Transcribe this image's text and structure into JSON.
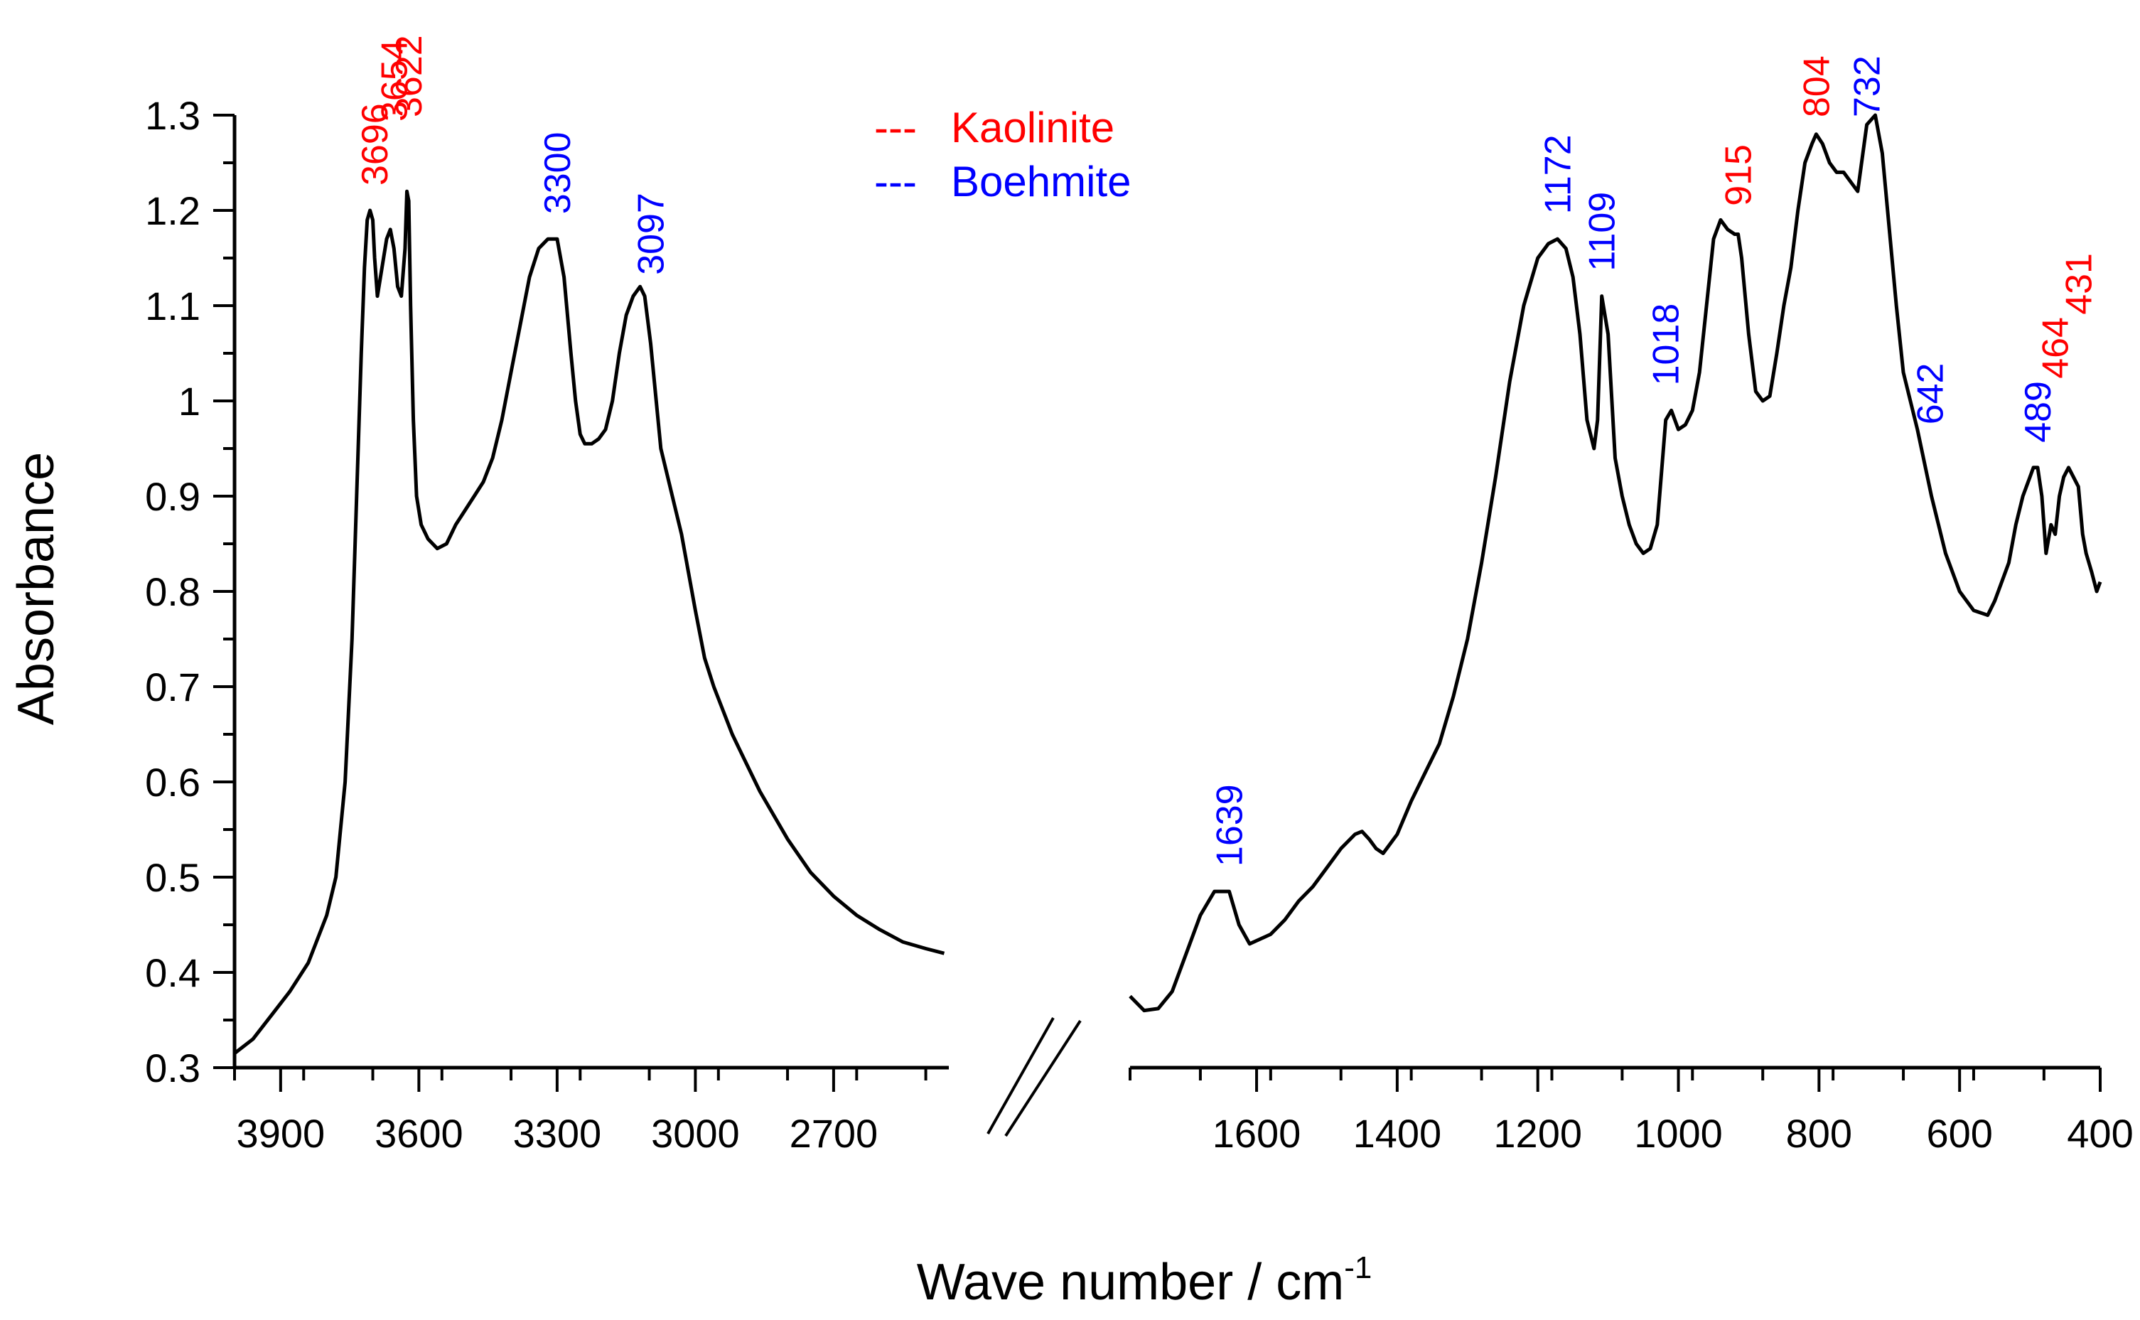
{
  "chart_data": {
    "type": "line",
    "ylabel": "Absorbance",
    "xlabel": "Wave number / cm",
    "xlabel_superscript": "-1",
    "ylim": [
      0.3,
      1.3
    ],
    "yticks": [
      "0.3",
      "0.4",
      "0.5",
      "0.6",
      "0.7",
      "0.8",
      "0.9",
      "1",
      "1.1",
      "1.2",
      "1.3"
    ],
    "colors": {
      "kaolinite": "#ff0000",
      "boehmite": "#0000ff",
      "line": "#000000"
    },
    "legend": [
      {
        "marker": "---",
        "name": "Kaolinite",
        "color": "#ff0000"
      },
      {
        "marker": "---",
        "name": "Boehmite",
        "color": "#0000ff"
      }
    ],
    "panels": [
      {
        "name": "high-wavenumber",
        "xlim": [
          4000,
          2450
        ],
        "xticks": [
          "3900",
          "3600",
          "3300",
          "3000",
          "2700"
        ],
        "series": {
          "x": [
            4000,
            3960,
            3920,
            3880,
            3840,
            3800,
            3780,
            3760,
            3745,
            3735,
            3725,
            3718,
            3712,
            3706,
            3700,
            3696,
            3690,
            3680,
            3670,
            3662,
            3654,
            3646,
            3638,
            3630,
            3626,
            3622,
            3618,
            3612,
            3605,
            3595,
            3580,
            3560,
            3540,
            3520,
            3500,
            3480,
            3460,
            3440,
            3420,
            3400,
            3380,
            3360,
            3340,
            3320,
            3300,
            3285,
            3270,
            3260,
            3250,
            3240,
            3225,
            3210,
            3195,
            3180,
            3165,
            3150,
            3135,
            3120,
            3110,
            3097,
            3085,
            3075,
            3060,
            3045,
            3030,
            3000,
            2980,
            2960,
            2940,
            2920,
            2900,
            2860,
            2800,
            2750,
            2700,
            2650,
            2600,
            2550,
            2500,
            2460
          ],
          "y": [
            0.315,
            0.33,
            0.355,
            0.38,
            0.41,
            0.46,
            0.5,
            0.6,
            0.75,
            0.9,
            1.05,
            1.14,
            1.19,
            1.2,
            1.19,
            1.15,
            1.11,
            1.14,
            1.17,
            1.18,
            1.16,
            1.12,
            1.11,
            1.16,
            1.22,
            1.21,
            1.1,
            0.98,
            0.9,
            0.87,
            0.855,
            0.845,
            0.85,
            0.87,
            0.885,
            0.9,
            0.915,
            0.94,
            0.98,
            1.03,
            1.08,
            1.13,
            1.16,
            1.17,
            1.17,
            1.13,
            1.05,
            1.0,
            0.965,
            0.955,
            0.955,
            0.96,
            0.97,
            1.0,
            1.05,
            1.09,
            1.11,
            1.12,
            1.11,
            1.06,
            1.0,
            0.95,
            0.92,
            0.89,
            0.86,
            0.78,
            0.73,
            0.7,
            0.675,
            0.65,
            0.63,
            0.59,
            0.54,
            0.505,
            0.48,
            0.46,
            0.445,
            0.432,
            0.425,
            0.42
          ]
        },
        "annotations": [
          {
            "label": "3696",
            "x": 3696,
            "color": "#ff0000"
          },
          {
            "label": "3654",
            "x": 3654,
            "color": "#ff0000"
          },
          {
            "label": "3622",
            "x": 3622,
            "color": "#ff0000"
          },
          {
            "label": "3300",
            "x": 3300,
            "color": "#0000ff"
          },
          {
            "label": "3097",
            "x": 3097,
            "color": "#0000ff"
          }
        ]
      },
      {
        "name": "low-wavenumber",
        "xlim": [
          1780,
          400
        ],
        "xticks": [
          "1600",
          "1400",
          "1200",
          "1000",
          "800",
          "600",
          "400"
        ],
        "series": {
          "x": [
            1780,
            1760,
            1740,
            1720,
            1700,
            1680,
            1660,
            1639,
            1625,
            1610,
            1595,
            1580,
            1560,
            1540,
            1520,
            1500,
            1480,
            1460,
            1450,
            1440,
            1430,
            1420,
            1410,
            1400,
            1380,
            1360,
            1340,
            1320,
            1300,
            1280,
            1260,
            1240,
            1220,
            1200,
            1185,
            1172,
            1160,
            1150,
            1140,
            1130,
            1120,
            1115,
            1109,
            1100,
            1090,
            1080,
            1070,
            1060,
            1050,
            1040,
            1030,
            1018,
            1010,
            1000,
            990,
            980,
            970,
            960,
            950,
            940,
            930,
            920,
            915,
            910,
            900,
            890,
            880,
            870,
            860,
            850,
            840,
            830,
            820,
            810,
            804,
            795,
            785,
            775,
            765,
            755,
            745,
            732,
            720,
            710,
            700,
            690,
            680,
            660,
            640,
            620,
            600,
            580,
            560,
            550,
            540,
            530,
            520,
            510,
            500,
            495,
            489,
            483,
            477,
            470,
            464,
            458,
            452,
            445,
            438,
            431,
            425,
            420,
            412,
            405,
            400
          ],
          "y": [
            0.375,
            0.36,
            0.362,
            0.38,
            0.42,
            0.46,
            0.485,
            0.485,
            0.45,
            0.43,
            0.435,
            0.44,
            0.455,
            0.475,
            0.49,
            0.51,
            0.53,
            0.545,
            0.548,
            0.54,
            0.53,
            0.525,
            0.535,
            0.545,
            0.58,
            0.61,
            0.64,
            0.69,
            0.75,
            0.83,
            0.92,
            1.02,
            1.1,
            1.15,
            1.165,
            1.17,
            1.16,
            1.13,
            1.07,
            0.98,
            0.95,
            0.98,
            1.11,
            1.07,
            0.94,
            0.9,
            0.87,
            0.85,
            0.84,
            0.845,
            0.87,
            0.98,
            0.99,
            0.97,
            0.975,
            0.99,
            1.03,
            1.1,
            1.17,
            1.19,
            1.18,
            1.175,
            1.175,
            1.15,
            1.07,
            1.01,
            1.0,
            1.005,
            1.05,
            1.1,
            1.14,
            1.2,
            1.25,
            1.27,
            1.28,
            1.27,
            1.25,
            1.24,
            1.24,
            1.23,
            1.22,
            1.29,
            1.3,
            1.26,
            1.18,
            1.1,
            1.03,
            0.97,
            0.9,
            0.84,
            0.8,
            0.78,
            0.775,
            0.79,
            0.81,
            0.83,
            0.87,
            0.9,
            0.92,
            0.93,
            0.93,
            0.9,
            0.84,
            0.87,
            0.86,
            0.9,
            0.92,
            0.93,
            0.92,
            0.91,
            0.86,
            0.84,
            0.82,
            0.8,
            0.81
          ]
        },
        "annotations": [
          {
            "label": "1639",
            "x": 1639,
            "color": "#0000ff"
          },
          {
            "label": "1172",
            "x": 1172,
            "color": "#0000ff"
          },
          {
            "label": "1109",
            "x": 1109,
            "color": "#0000ff"
          },
          {
            "label": "1018",
            "x": 1018,
            "color": "#0000ff"
          },
          {
            "label": "915",
            "x": 915,
            "color": "#ff0000"
          },
          {
            "label": "804",
            "x": 804,
            "color": "#ff0000"
          },
          {
            "label": "732",
            "x": 732,
            "color": "#0000ff"
          },
          {
            "label": "642",
            "x": 642,
            "color": "#0000ff"
          },
          {
            "label": "489",
            "x": 489,
            "color": "#0000ff"
          },
          {
            "label": "464",
            "x": 464,
            "color": "#ff0000"
          },
          {
            "label": "431",
            "x": 431,
            "color": "#ff0000"
          }
        ]
      }
    ]
  }
}
